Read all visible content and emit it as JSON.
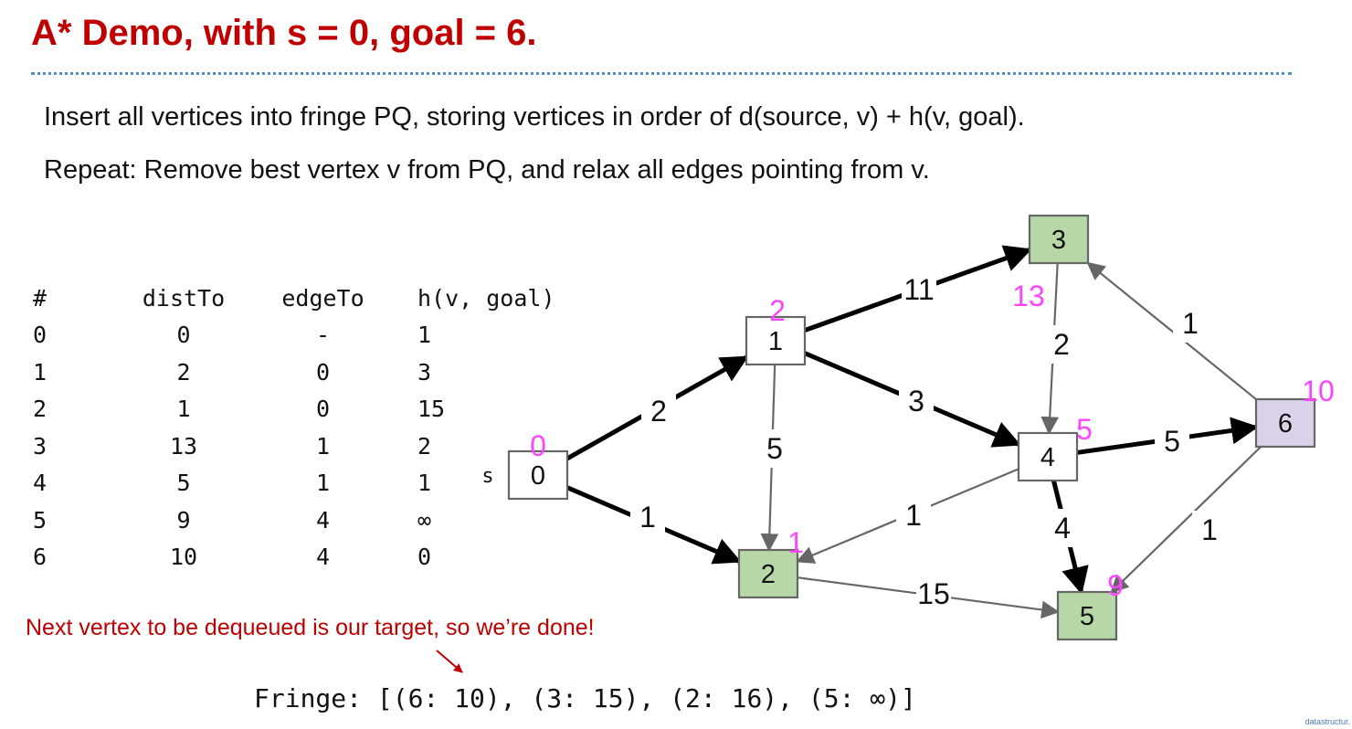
{
  "title": "A* Demo, with s = 0, goal = 6.",
  "instructions": {
    "line1": "Insert all vertices into fringe PQ, storing vertices in order of d(source, v) + h(v, goal).",
    "line2": "Repeat: Remove best vertex v from PQ, and relax all edges pointing from v."
  },
  "table": {
    "headers": [
      "#",
      "distTo",
      "edgeTo",
      "h(v, goal)"
    ],
    "rows": [
      [
        "0",
        "0",
        "-",
        "1"
      ],
      [
        "1",
        "2",
        "0",
        "3"
      ],
      [
        "2",
        "1",
        "0",
        "15"
      ],
      [
        "3",
        "13",
        "1",
        "2"
      ],
      [
        "4",
        "5",
        "1",
        "1"
      ],
      [
        "5",
        "9",
        "4",
        "∞"
      ],
      [
        "6",
        "10",
        "4",
        "0"
      ]
    ]
  },
  "graph": {
    "source_label": "s",
    "colors": {
      "visited_fill": "#b7d7a8",
      "current_fill": "#d9d2e9",
      "unvisited_fill": "#ffffff",
      "priority_label": "#ff44ff",
      "tree_edge": "#000000",
      "other_edge": "#666666"
    },
    "nodes": [
      {
        "id": "0",
        "label": "0",
        "priority": "0",
        "state": "unvisited"
      },
      {
        "id": "1",
        "label": "1",
        "priority": "2",
        "state": "unvisited"
      },
      {
        "id": "2",
        "label": "2",
        "priority": "1",
        "state": "visited"
      },
      {
        "id": "3",
        "label": "3",
        "priority": "13",
        "state": "visited"
      },
      {
        "id": "4",
        "label": "4",
        "priority": "5",
        "state": "unvisited"
      },
      {
        "id": "5",
        "label": "5",
        "priority": "9",
        "state": "visited"
      },
      {
        "id": "6",
        "label": "6",
        "priority": "10",
        "state": "current"
      }
    ],
    "edges": [
      {
        "from": "0",
        "to": "1",
        "weight": "2",
        "tree": true
      },
      {
        "from": "0",
        "to": "2",
        "weight": "1",
        "tree": true
      },
      {
        "from": "1",
        "to": "2",
        "weight": "5",
        "tree": false
      },
      {
        "from": "1",
        "to": "3",
        "weight": "11",
        "tree": true
      },
      {
        "from": "1",
        "to": "4",
        "weight": "3",
        "tree": true
      },
      {
        "from": "3",
        "to": "4",
        "weight": "2",
        "tree": false
      },
      {
        "from": "4",
        "to": "2",
        "weight": "1",
        "tree": false
      },
      {
        "from": "4",
        "to": "6",
        "weight": "5",
        "tree": true
      },
      {
        "from": "4",
        "to": "5",
        "weight": "4",
        "tree": true
      },
      {
        "from": "2",
        "to": "5",
        "weight": "15",
        "tree": false
      },
      {
        "from": "6",
        "to": "3",
        "weight": "1",
        "tree": false
      },
      {
        "from": "6",
        "to": "5",
        "weight": "1",
        "tree": false
      }
    ]
  },
  "note": "Next vertex to be dequeued is our target, so we’re done!",
  "fringe": "Fringe: [(6: 10), (3: 15), (2: 16), (5: ∞)]",
  "footer": "datastructur."
}
